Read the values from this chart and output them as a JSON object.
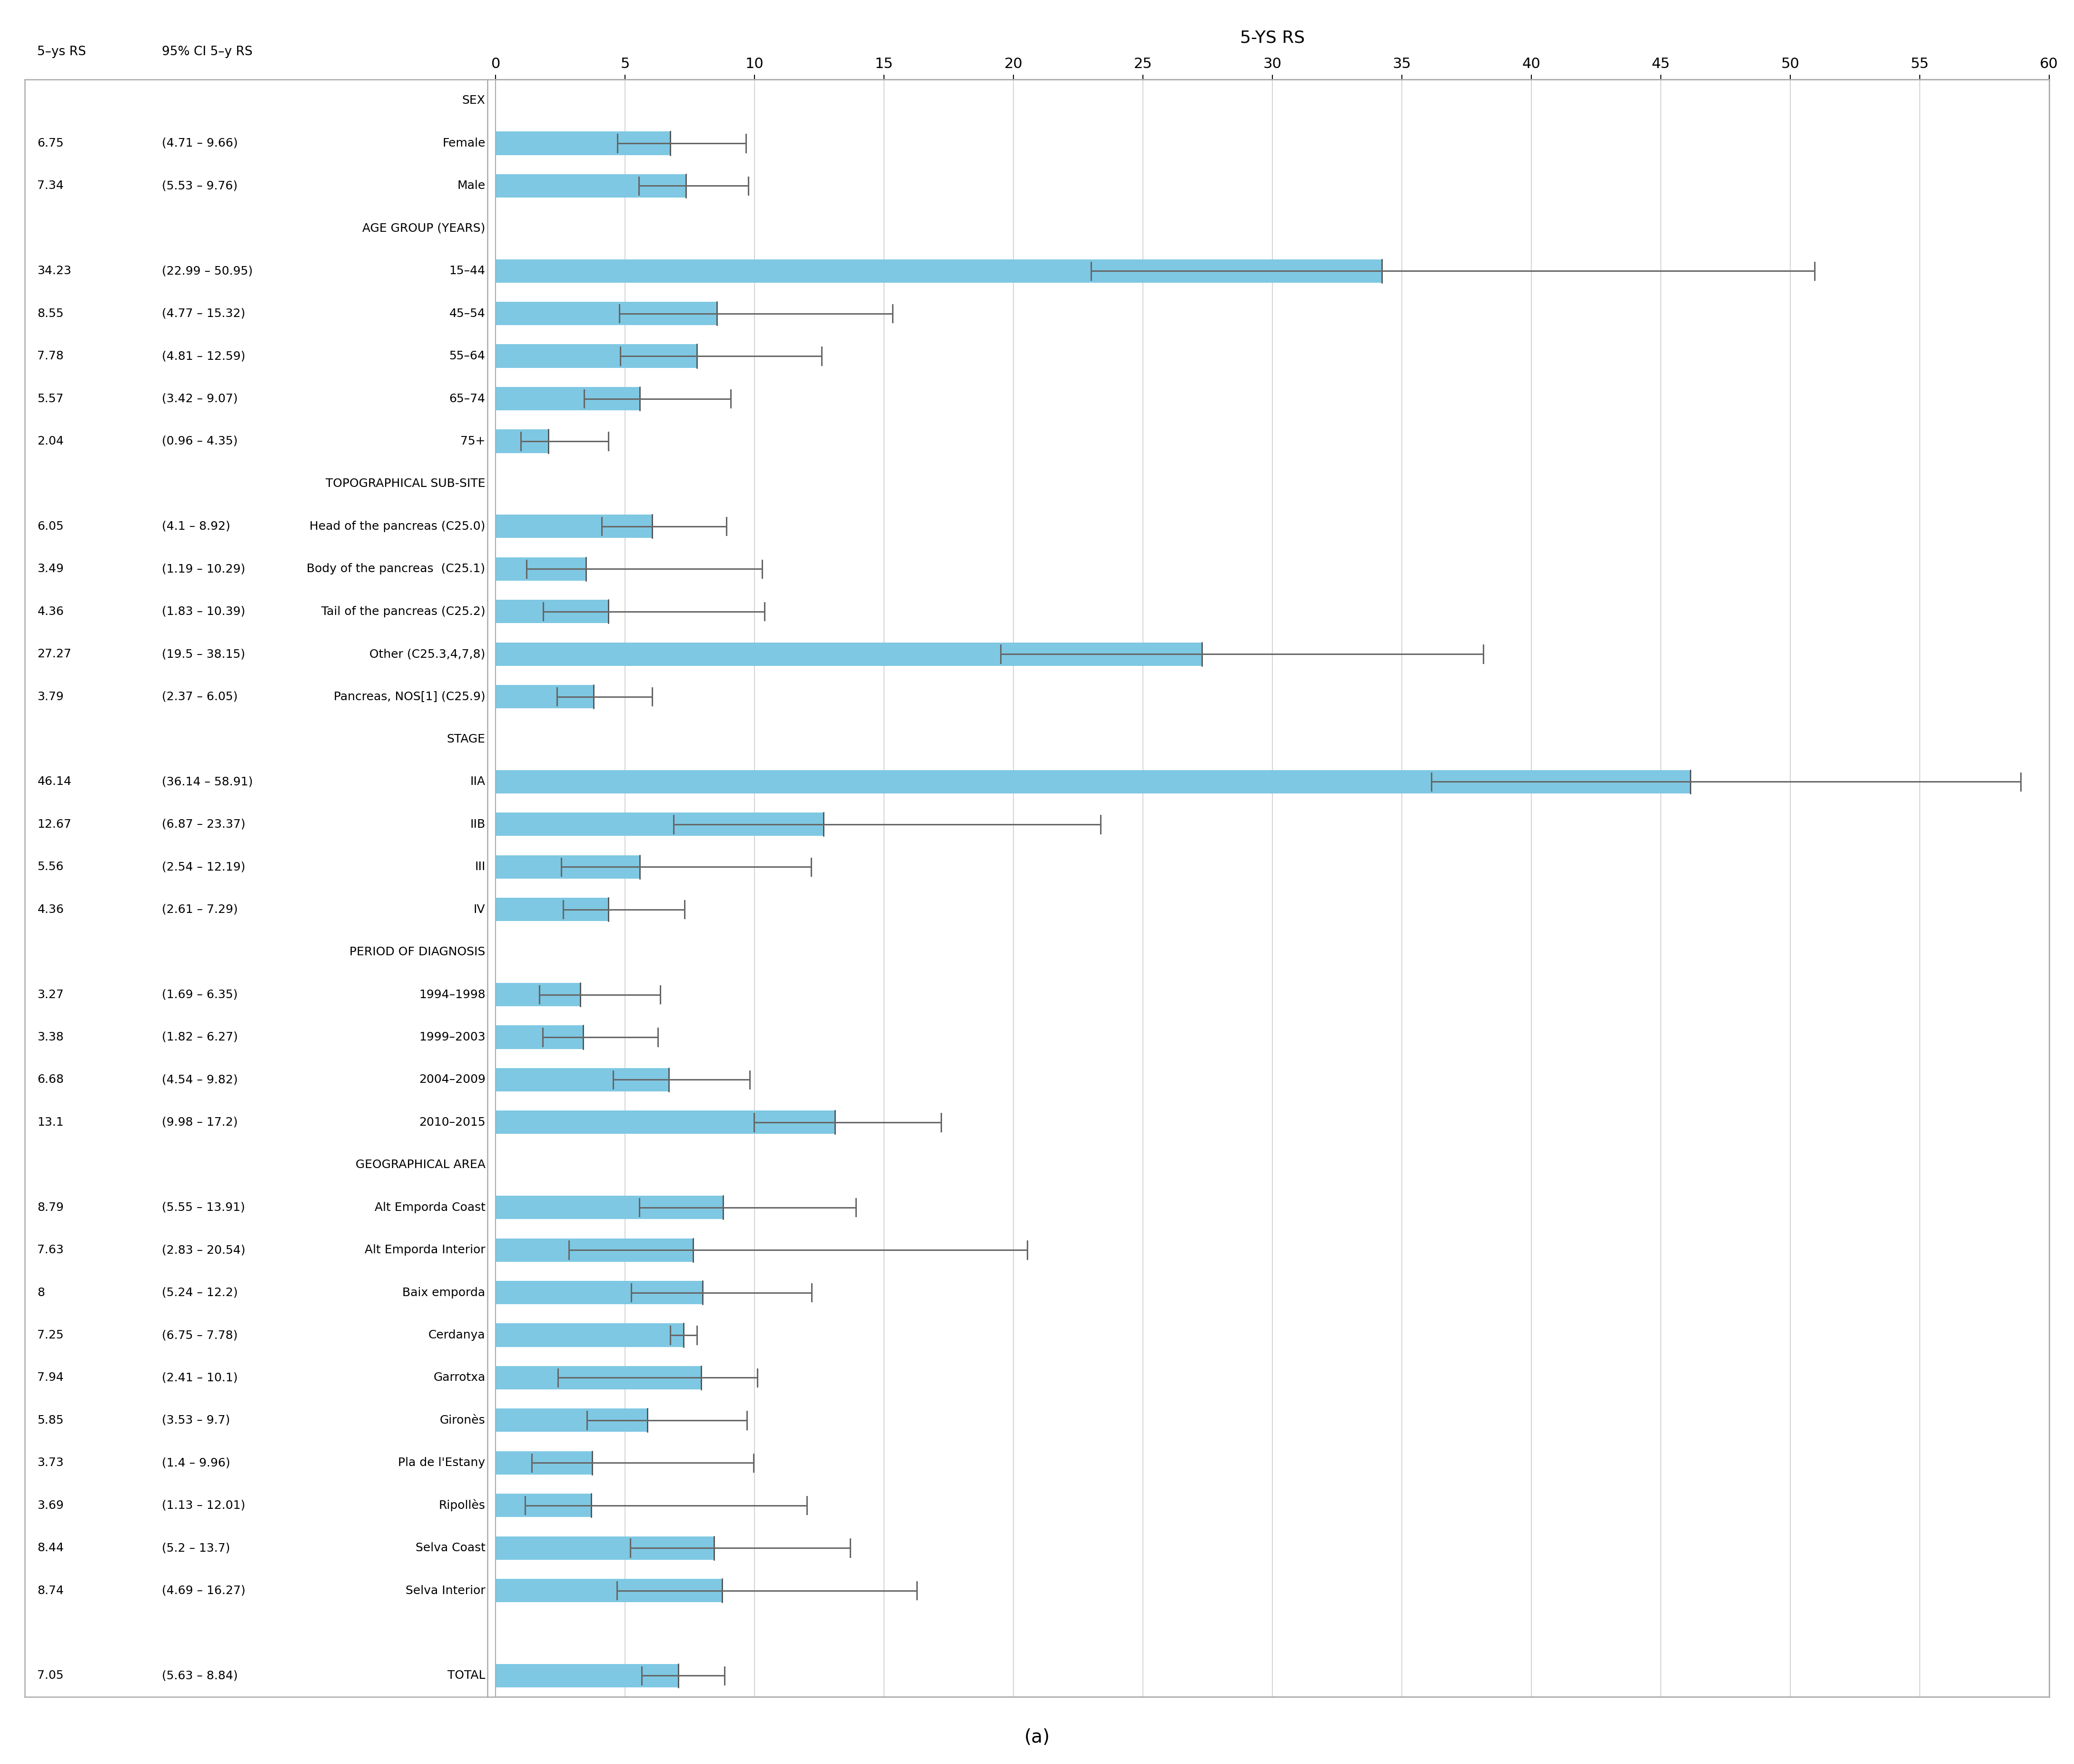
{
  "title": "5-YS RS",
  "subtitle": "(a)",
  "xlim": [
    0,
    60
  ],
  "xticks": [
    0,
    5,
    10,
    15,
    20,
    25,
    30,
    35,
    40,
    45,
    50,
    55,
    60
  ],
  "bar_color": "#7ec8e3",
  "error_color": "#666666",
  "col1_header": "5–ys RS",
  "col2_header": "95% CI 5–y RS",
  "rows": [
    {
      "label": "SEX",
      "header": true,
      "value": null,
      "ci_low": null,
      "ci_high": null,
      "rs": "",
      "ci_str": ""
    },
    {
      "label": "Female",
      "header": false,
      "value": 6.75,
      "ci_low": 4.71,
      "ci_high": 9.66,
      "rs": "6.75",
      "ci_str": "(4.71 – 9.66)"
    },
    {
      "label": "Male",
      "header": false,
      "value": 7.34,
      "ci_low": 5.53,
      "ci_high": 9.76,
      "rs": "7.34",
      "ci_str": "(5.53 – 9.76)"
    },
    {
      "label": "AGE GROUP (YEARS)",
      "header": true,
      "value": null,
      "ci_low": null,
      "ci_high": null,
      "rs": "",
      "ci_str": ""
    },
    {
      "label": "15–44",
      "header": false,
      "value": 34.23,
      "ci_low": 22.99,
      "ci_high": 50.95,
      "rs": "34.23",
      "ci_str": "(22.99 – 50.95)"
    },
    {
      "label": "45–54",
      "header": false,
      "value": 8.55,
      "ci_low": 4.77,
      "ci_high": 15.32,
      "rs": "8.55",
      "ci_str": "(4.77 – 15.32)"
    },
    {
      "label": "55–64",
      "header": false,
      "value": 7.78,
      "ci_low": 4.81,
      "ci_high": 12.59,
      "rs": "7.78",
      "ci_str": "(4.81 – 12.59)"
    },
    {
      "label": "65–74",
      "header": false,
      "value": 5.57,
      "ci_low": 3.42,
      "ci_high": 9.07,
      "rs": "5.57",
      "ci_str": "(3.42 – 9.07)"
    },
    {
      "label": "75+",
      "header": false,
      "value": 2.04,
      "ci_low": 0.96,
      "ci_high": 4.35,
      "rs": "2.04",
      "ci_str": "(0.96 – 4.35)"
    },
    {
      "label": "TOPOGRAPHICAL SUB-SITE",
      "header": true,
      "value": null,
      "ci_low": null,
      "ci_high": null,
      "rs": "",
      "ci_str": ""
    },
    {
      "label": "Head of the pancreas (C25.0)",
      "header": false,
      "value": 6.05,
      "ci_low": 4.1,
      "ci_high": 8.92,
      "rs": "6.05",
      "ci_str": "(4.1 – 8.92)"
    },
    {
      "label": "Body of the pancreas  (C25.1)",
      "header": false,
      "value": 3.49,
      "ci_low": 1.19,
      "ci_high": 10.29,
      "rs": "3.49",
      "ci_str": "(1.19 – 10.29)"
    },
    {
      "label": "Tail of the pancreas (C25.2)",
      "header": false,
      "value": 4.36,
      "ci_low": 1.83,
      "ci_high": 10.39,
      "rs": "4.36",
      "ci_str": "(1.83 – 10.39)"
    },
    {
      "label": "Other (C25.3,4,7,8)",
      "header": false,
      "value": 27.27,
      "ci_low": 19.5,
      "ci_high": 38.15,
      "rs": "27.27",
      "ci_str": "(19.5 – 38.15)"
    },
    {
      "label": "Pancreas, NOS[1] (C25.9)",
      "header": false,
      "value": 3.79,
      "ci_low": 2.37,
      "ci_high": 6.05,
      "rs": "3.79",
      "ci_str": "(2.37 – 6.05)"
    },
    {
      "label": "STAGE",
      "header": true,
      "value": null,
      "ci_low": null,
      "ci_high": null,
      "rs": "",
      "ci_str": ""
    },
    {
      "label": "IIA",
      "header": false,
      "value": 46.14,
      "ci_low": 36.14,
      "ci_high": 58.91,
      "rs": "46.14",
      "ci_str": "(36.14 – 58.91)"
    },
    {
      "label": "IIB",
      "header": false,
      "value": 12.67,
      "ci_low": 6.87,
      "ci_high": 23.37,
      "rs": "12.67",
      "ci_str": "(6.87 – 23.37)"
    },
    {
      "label": "III",
      "header": false,
      "value": 5.56,
      "ci_low": 2.54,
      "ci_high": 12.19,
      "rs": "5.56",
      "ci_str": "(2.54 – 12.19)"
    },
    {
      "label": "IV",
      "header": false,
      "value": 4.36,
      "ci_low": 2.61,
      "ci_high": 7.29,
      "rs": "4.36",
      "ci_str": "(2.61 – 7.29)"
    },
    {
      "label": "PERIOD OF DIAGNOSIS",
      "header": true,
      "value": null,
      "ci_low": null,
      "ci_high": null,
      "rs": "",
      "ci_str": ""
    },
    {
      "label": "1994–1998",
      "header": false,
      "value": 3.27,
      "ci_low": 1.69,
      "ci_high": 6.35,
      "rs": "3.27",
      "ci_str": "(1.69 – 6.35)"
    },
    {
      "label": "1999–2003",
      "header": false,
      "value": 3.38,
      "ci_low": 1.82,
      "ci_high": 6.27,
      "rs": "3.38",
      "ci_str": "(1.82 – 6.27)"
    },
    {
      "label": "2004–2009",
      "header": false,
      "value": 6.68,
      "ci_low": 4.54,
      "ci_high": 9.82,
      "rs": "6.68",
      "ci_str": "(4.54 – 9.82)"
    },
    {
      "label": "2010–2015",
      "header": false,
      "value": 13.1,
      "ci_low": 9.98,
      "ci_high": 17.2,
      "rs": "13.1",
      "ci_str": "(9.98 – 17.2)"
    },
    {
      "label": "GEOGRAPHICAL AREA",
      "header": true,
      "value": null,
      "ci_low": null,
      "ci_high": null,
      "rs": "",
      "ci_str": ""
    },
    {
      "label": "Alt Emporda Coast",
      "header": false,
      "value": 8.79,
      "ci_low": 5.55,
      "ci_high": 13.91,
      "rs": "8.79",
      "ci_str": "(5.55 – 13.91)"
    },
    {
      "label": "Alt Emporda Interior",
      "header": false,
      "value": 7.63,
      "ci_low": 2.83,
      "ci_high": 20.54,
      "rs": "7.63",
      "ci_str": "(2.83 – 20.54)"
    },
    {
      "label": "Baix emporda",
      "header": false,
      "value": 8.0,
      "ci_low": 5.24,
      "ci_high": 12.2,
      "rs": "8",
      "ci_str": "(5.24 – 12.2)"
    },
    {
      "label": "Cerdanya",
      "header": false,
      "value": 7.25,
      "ci_low": 6.75,
      "ci_high": 7.78,
      "rs": "7.25",
      "ci_str": "(6.75 – 7.78)"
    },
    {
      "label": "Garrotxa",
      "header": false,
      "value": 7.94,
      "ci_low": 2.41,
      "ci_high": 10.1,
      "rs": "7.94",
      "ci_str": "(2.41 – 10.1)"
    },
    {
      "label": "Gironès",
      "header": false,
      "value": 5.85,
      "ci_low": 3.53,
      "ci_high": 9.7,
      "rs": "5.85",
      "ci_str": "(3.53 – 9.7)"
    },
    {
      "label": "Pla de l'Estany",
      "header": false,
      "value": 3.73,
      "ci_low": 1.4,
      "ci_high": 9.96,
      "rs": "3.73",
      "ci_str": "(1.4 – 9.96)"
    },
    {
      "label": "Ripollès",
      "header": false,
      "value": 3.69,
      "ci_low": 1.13,
      "ci_high": 12.01,
      "rs": "3.69",
      "ci_str": "(1.13 – 12.01)"
    },
    {
      "label": "Selva Coast",
      "header": false,
      "value": 8.44,
      "ci_low": 5.2,
      "ci_high": 13.7,
      "rs": "8.44",
      "ci_str": "(5.2 – 13.7)"
    },
    {
      "label": "Selva Interior",
      "header": false,
      "value": 8.74,
      "ci_low": 4.69,
      "ci_high": 16.27,
      "rs": "8.74",
      "ci_str": "(4.69 – 16.27)"
    },
    {
      "label": "",
      "header": true,
      "value": null,
      "ci_low": null,
      "ci_high": null,
      "rs": "",
      "ci_str": ""
    },
    {
      "label": "TOTAL",
      "header": false,
      "value": 7.05,
      "ci_low": 5.63,
      "ci_high": 8.84,
      "rs": "7.05",
      "ci_str": "(5.63 – 8.84)"
    }
  ]
}
